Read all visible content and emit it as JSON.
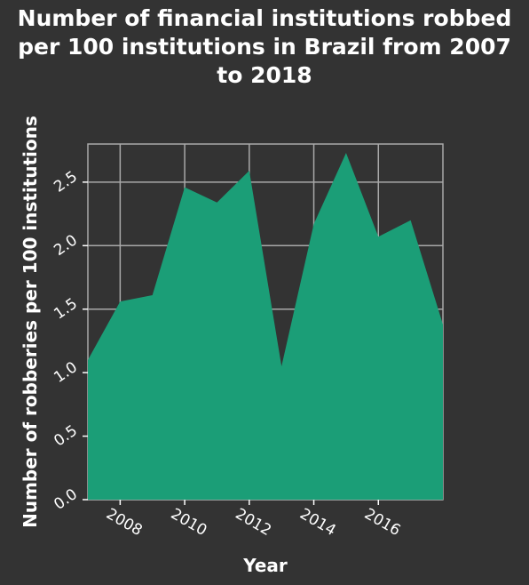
{
  "chart_data": {
    "type": "area",
    "title_lines": [
      "Number of financial institutions robbed",
      "per 100 institutions in Brazil from 2007",
      "to 2018"
    ],
    "xlabel": "Year",
    "ylabel": "Number of robberies per 100 institutions",
    "x": [
      2007,
      2008,
      2009,
      2010,
      2011,
      2012,
      2013,
      2014,
      2015,
      2016,
      2017,
      2018
    ],
    "values": [
      1.1,
      1.56,
      1.61,
      2.46,
      2.34,
      2.59,
      1.05,
      2.17,
      2.73,
      2.07,
      2.2,
      1.38
    ],
    "xlim": [
      2007,
      2018
    ],
    "ylim": [
      0,
      2.8
    ],
    "xticks": [
      "2008",
      "2010",
      "2012",
      "2014",
      "2016"
    ],
    "xtick_values": [
      2008,
      2010,
      2012,
      2014,
      2016
    ],
    "yticks": [
      "0.0",
      "0.5",
      "1.0",
      "1.5",
      "2.0",
      "2.5"
    ],
    "ytick_values": [
      0,
      0.5,
      1.0,
      1.5,
      2.0,
      2.5
    ],
    "grid": true,
    "fill_color": "#1b9e77",
    "background_color": "#333333",
    "grid_color": "#a9a9a9"
  }
}
